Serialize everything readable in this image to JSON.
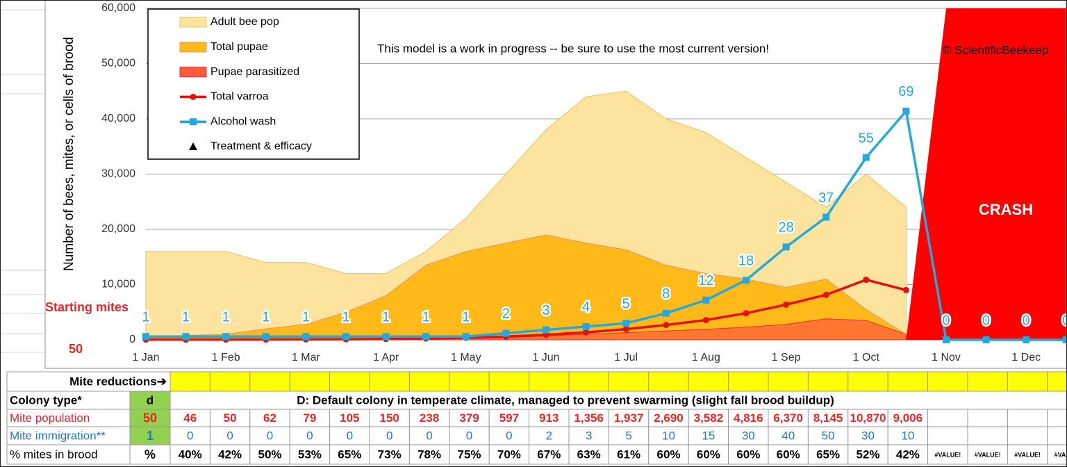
{
  "chart_data": {
    "type": "combo",
    "y_axis_title": "Number of bees, mites, or cells of brood",
    "annotation": "This model is a work in progress -- be sure to use the most current version!",
    "copyright": "© ScientificBeekeep",
    "starting_mites": {
      "label": "Starting mites",
      "value": 50
    },
    "categories": [
      "1 Jan",
      null,
      "1 Feb",
      null,
      "1 Mar",
      null,
      "1 Apr",
      null,
      "1 May",
      null,
      "1 Jun",
      null,
      "1 Jul",
      null,
      "1 Aug",
      null,
      "1 Sep",
      null,
      "1 Oct",
      null,
      "1 Nov",
      null,
      "1 Dec",
      null
    ],
    "ylim": [
      0,
      60000
    ],
    "yticks": [
      0,
      {
        "value": 10000,
        "label": "10,000"
      },
      {
        "value": 20000,
        "label": "20,000"
      },
      {
        "value": 30000,
        "label": "30,000"
      },
      {
        "value": 40000,
        "label": "40,000"
      },
      {
        "value": 50000,
        "label": "50,000"
      },
      {
        "value": 60000,
        "label": "60,000"
      }
    ],
    "y2lim": [
      0,
      100
    ],
    "grid": true,
    "legend": "top-left",
    "series": [
      {
        "name": "Adult bee pop",
        "type": "area",
        "color": "#fde49e",
        "stroke": "#f2c14e",
        "values": [
          16000,
          16000,
          16000,
          14000,
          14000,
          12000,
          12000,
          16000,
          22000,
          30000,
          38000,
          44000,
          45000,
          40000,
          37500,
          33000,
          28500,
          24000,
          30000,
          24000,
          null,
          null,
          null,
          null
        ]
      },
      {
        "name": "Total pupae",
        "type": "area",
        "color": "#ffba1a",
        "stroke": "#f0905a",
        "values": [
          500,
          800,
          1000,
          2000,
          2800,
          5000,
          8000,
          13500,
          16000,
          17500,
          19000,
          17500,
          16300,
          13500,
          12000,
          11000,
          9500,
          11000,
          5500,
          1000,
          null,
          null,
          null,
          null
        ]
      },
      {
        "name": "Pupae parasitized",
        "type": "area",
        "color": "#ff5a3c",
        "stroke": "#e03030",
        "values": [
          0,
          0,
          0,
          0,
          0,
          0,
          0,
          100,
          200,
          400,
          700,
          1000,
          1300,
          1600,
          1900,
          2300,
          2800,
          3800,
          3500,
          1000,
          null,
          null,
          null,
          null
        ]
      },
      {
        "name": "Total varroa",
        "type": "line",
        "marker": "circle",
        "color": "#e8100f",
        "values": [
          50,
          46,
          50,
          62,
          79,
          105,
          150,
          238,
          379,
          597,
          913,
          1356,
          1937,
          2690,
          3582,
          4816,
          6370,
          8145,
          10870,
          9006,
          null,
          null,
          null,
          null
        ]
      },
      {
        "name": "Alcohol wash",
        "type": "line",
        "marker": "square",
        "color": "#22a9df",
        "axis": "y2",
        "labels": true,
        "values": [
          1,
          1,
          1,
          1,
          1,
          1,
          1,
          1,
          1,
          2,
          3,
          4,
          5,
          8,
          12,
          18,
          28,
          37,
          55,
          69,
          0,
          0,
          0,
          0
        ]
      },
      {
        "name": "Treatment & efficacy",
        "type": "marker",
        "marker": "triangle",
        "color": "#000000",
        "values": [
          null,
          null,
          null,
          null,
          null,
          null,
          null,
          null,
          null,
          null,
          null,
          null,
          null,
          null,
          null,
          null,
          null,
          null,
          null,
          null,
          null,
          null,
          null,
          null
        ]
      }
    ],
    "crash": {
      "label": "CRASH",
      "color": "#ff0000",
      "values": [
        null,
        null,
        null,
        null,
        null,
        null,
        null,
        null,
        null,
        null,
        null,
        null,
        null,
        null,
        null,
        null,
        null,
        null,
        null,
        0,
        60000,
        60000,
        60000,
        60000
      ]
    }
  },
  "table": {
    "mite_reductions": {
      "label": "Mite reductions➔"
    },
    "colony_type": {
      "label": "Colony type*",
      "code": "d",
      "description": "D: Default colony in temperate climate, managed to prevent swarming (slight fall brood buildup)"
    },
    "mite_population": {
      "label": "Mite population",
      "start": "50",
      "values": [
        "46",
        "50",
        "62",
        "79",
        "105",
        "150",
        "238",
        "379",
        "597",
        "913",
        "1,356",
        "1,937",
        "2,690",
        "3,582",
        "4,816",
        "6,370",
        "8,145",
        "10,870",
        "9,006"
      ]
    },
    "mite_immigration": {
      "label": "Mite immigration**",
      "start": "1",
      "values": [
        "0",
        "0",
        "0",
        "0",
        "0",
        "0",
        "0",
        "0",
        "0",
        "2",
        "3",
        "5",
        "10",
        "15",
        "30",
        "40",
        "50",
        "30",
        "10"
      ]
    },
    "brood_pct": {
      "label": "% mites in brood",
      "start": "%",
      "values": [
        "40%",
        "42%",
        "50%",
        "53%",
        "65%",
        "73%",
        "78%",
        "75%",
        "70%",
        "67%",
        "63%",
        "61%",
        "60%",
        "60%",
        "60%",
        "60%",
        "65%",
        "52%",
        "42%",
        "#VALUE!",
        "#VALUE!",
        "#VALUE!",
        "#VALUE!"
      ]
    }
  }
}
